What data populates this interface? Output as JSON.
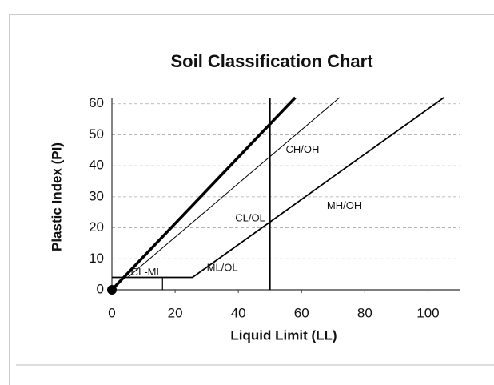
{
  "chart_data": {
    "type": "line",
    "title": "Soil Classification Chart",
    "x_label": "Liquid Limit (LL)",
    "y_label": "Plastic Index (PI)",
    "xlim": [
      0,
      110
    ],
    "ylim": [
      0,
      62
    ],
    "xticks": [
      0,
      20,
      40,
      60,
      80,
      100
    ],
    "yticks": [
      0,
      10,
      20,
      30,
      40,
      50,
      60
    ],
    "grid": true,
    "series": [
      {
        "color": "#000000",
        "width": 3.5,
        "x": [
          0,
          58
        ],
        "values": [
          0,
          62
        ]
      },
      {
        "color": "#000000",
        "width": 1,
        "x": [
          5,
          72
        ],
        "values": [
          4,
          62
        ]
      },
      {
        "color": "#000000",
        "width": 1.8,
        "x": [
          0,
          25.5,
          105
        ],
        "values": [
          4,
          4,
          62
        ]
      },
      {
        "color": "#000000",
        "width": 1.8,
        "x": [
          50,
          50
        ],
        "values": [
          0,
          62
        ]
      },
      {
        "color": "#000000",
        "width": 1.2,
        "x": [
          16,
          16
        ],
        "values": [
          0,
          4
        ]
      }
    ],
    "annotations": [
      {
        "text": "CL-ML",
        "x": 6,
        "y": 5.5
      },
      {
        "text": "ML/OL",
        "x": 30,
        "y": 7
      },
      {
        "text": "CL/OL",
        "x": 39,
        "y": 23
      },
      {
        "text": "CH/OH",
        "x": 55,
        "y": 45
      },
      {
        "text": "MH/OH",
        "x": 68,
        "y": 27
      }
    ]
  }
}
